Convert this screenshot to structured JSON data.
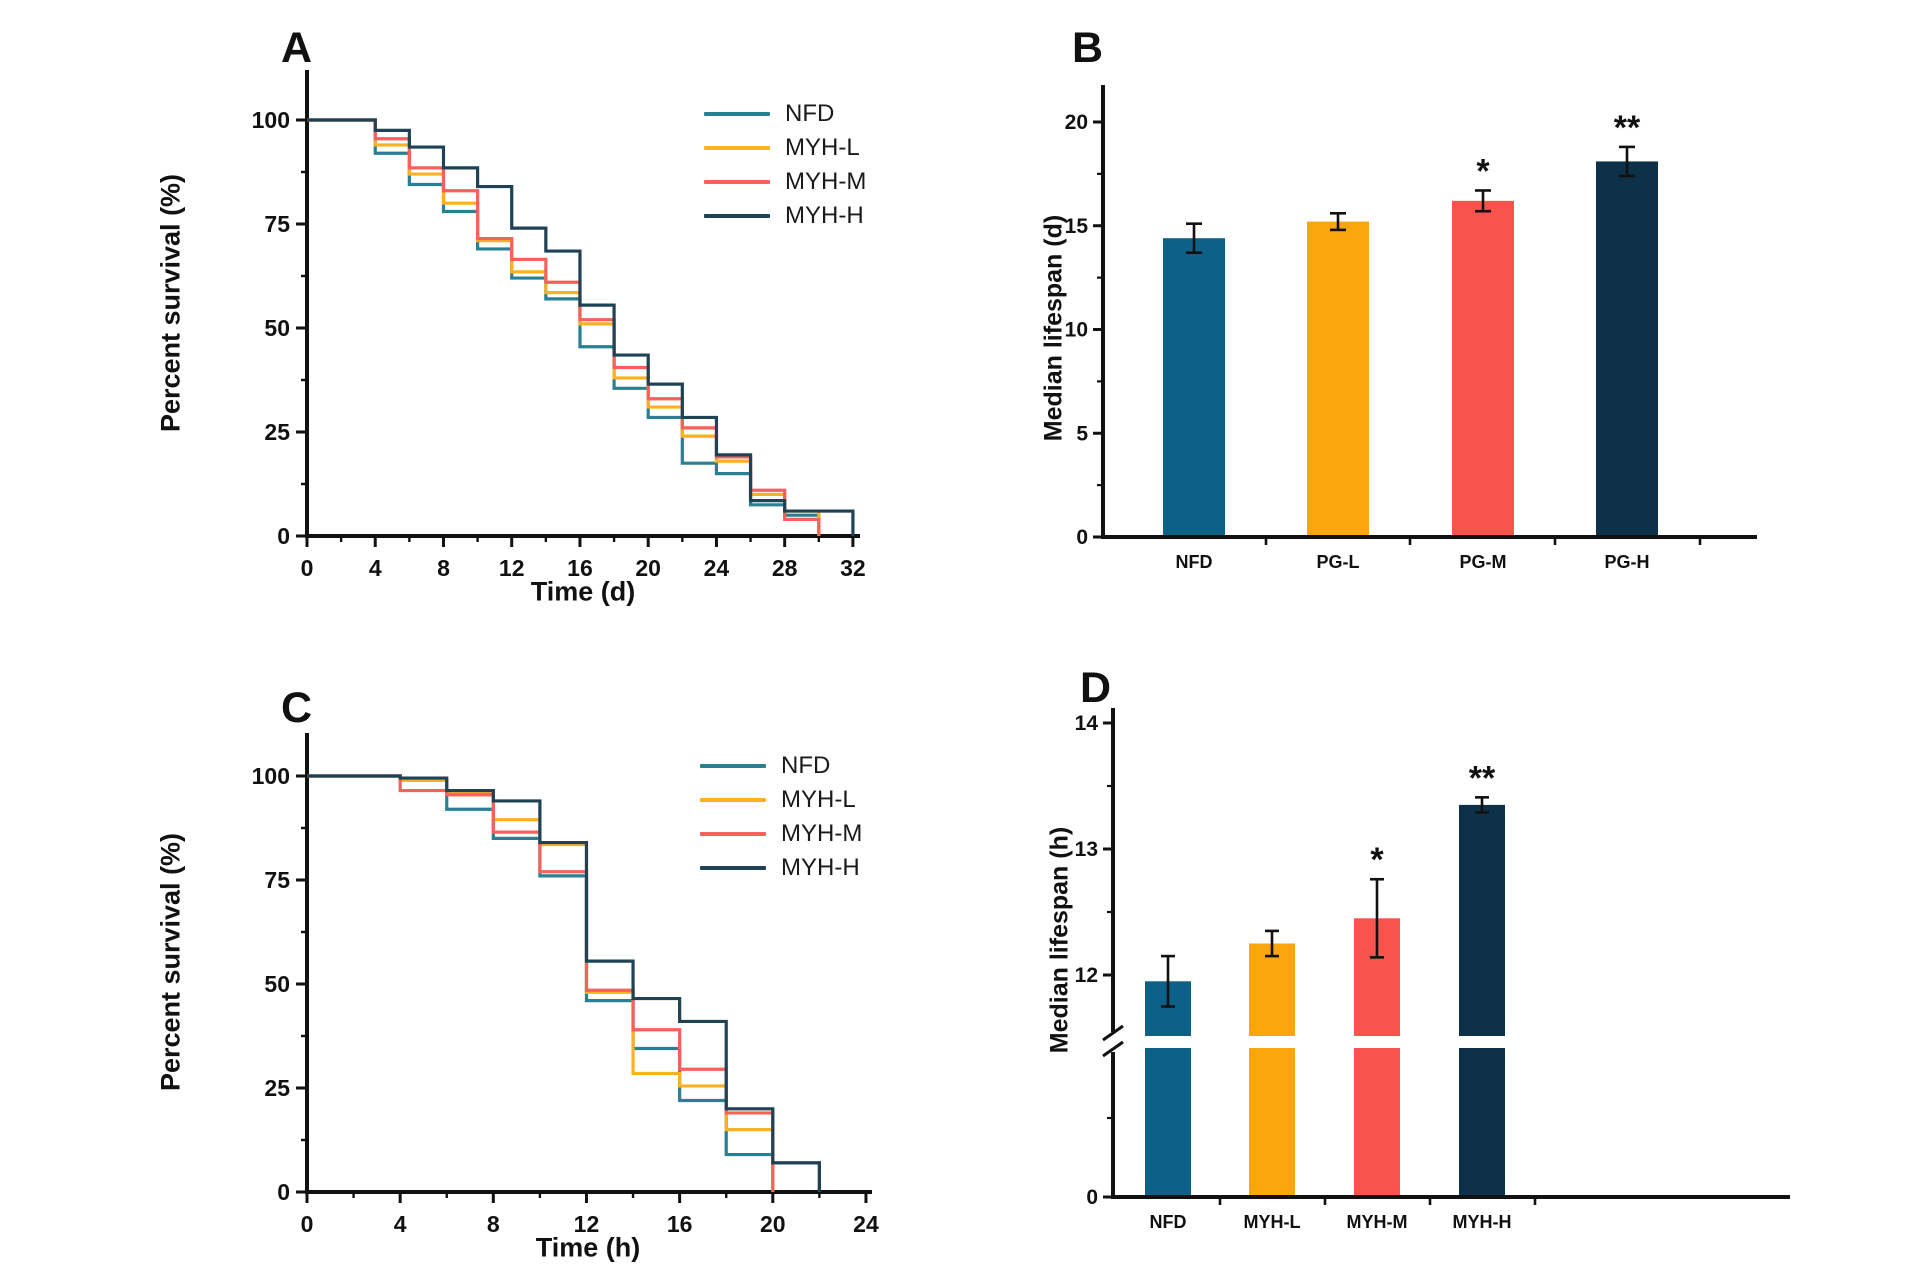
{
  "figure_bg": "#ffffff",
  "palette": {
    "NFD_line": "#2a8093",
    "NFD_bar": "#0c6189",
    "MYH_L_line": "#fdb022",
    "MYH_L_bar": "#fca50d",
    "MYH_M_line": "#f8605a",
    "MYH_M_bar": "#f9534d",
    "MYH_H_line": "#1f4254",
    "MYH_H_bar": "#0d3148",
    "axis": "#111111"
  },
  "chart_data": [
    {
      "panel": "A",
      "type": "line",
      "subtype": "kaplan-meier-step",
      "xlabel": "Time (d)",
      "ylabel": "Percent survival (%)",
      "xlim": [
        0,
        32
      ],
      "ylim": [
        0,
        100
      ],
      "x_ticks": [
        0,
        4,
        8,
        12,
        16,
        20,
        24,
        28,
        32
      ],
      "y_ticks": [
        0,
        25,
        50,
        75,
        100
      ],
      "grid": false,
      "legend_position": "upper right",
      "series": [
        {
          "name": "NFD",
          "color": "#2a8093",
          "points": [
            [
              0,
              100
            ],
            [
              4,
              92
            ],
            [
              6,
              84.5
            ],
            [
              8,
              78
            ],
            [
              10,
              69
            ],
            [
              12,
              62
            ],
            [
              14,
              57
            ],
            [
              16,
              45.5
            ],
            [
              18,
              35.5
            ],
            [
              20,
              28.5
            ],
            [
              22,
              17.5
            ],
            [
              24,
              15
            ],
            [
              26,
              7.5
            ],
            [
              28,
              5
            ],
            [
              30,
              0
            ]
          ]
        },
        {
          "name": "MYH-L",
          "color": "#fdb022",
          "points": [
            [
              0,
              100
            ],
            [
              4,
              94
            ],
            [
              6,
              87
            ],
            [
              8,
              80
            ],
            [
              10,
              71
            ],
            [
              12,
              63.5
            ],
            [
              14,
              58.5
            ],
            [
              16,
              51
            ],
            [
              18,
              38
            ],
            [
              20,
              31
            ],
            [
              22,
              24
            ],
            [
              24,
              18
            ],
            [
              26,
              10
            ],
            [
              28,
              6
            ],
            [
              30,
              0
            ]
          ]
        },
        {
          "name": "MYH-M",
          "color": "#f8605a",
          "points": [
            [
              0,
              100
            ],
            [
              4,
              95.5
            ],
            [
              6,
              88.5
            ],
            [
              8,
              83
            ],
            [
              10,
              71.5
            ],
            [
              12,
              66.5
            ],
            [
              14,
              61
            ],
            [
              16,
              52
            ],
            [
              18,
              40.5
            ],
            [
              20,
              33
            ],
            [
              22,
              26
            ],
            [
              24,
              19
            ],
            [
              26,
              11
            ],
            [
              28,
              4
            ],
            [
              30,
              0
            ]
          ]
        },
        {
          "name": "MYH-H",
          "color": "#1f4254",
          "points": [
            [
              0,
              100
            ],
            [
              4,
              97.5
            ],
            [
              6,
              93.5
            ],
            [
              8,
              88.5
            ],
            [
              10,
              84
            ],
            [
              12,
              74
            ],
            [
              14,
              68.5
            ],
            [
              16,
              55.5
            ],
            [
              18,
              43.5
            ],
            [
              20,
              36.5
            ],
            [
              22,
              28.5
            ],
            [
              24,
              19.5
            ],
            [
              26,
              8.5
            ],
            [
              28,
              6
            ],
            [
              32,
              0
            ]
          ]
        }
      ]
    },
    {
      "panel": "B",
      "type": "bar",
      "ylabel": "Median lifespan (d)",
      "ylim": [
        0,
        22
      ],
      "y_ticks": [
        0,
        5,
        10,
        15,
        20
      ],
      "y_minor_ticks": [
        2.5,
        7.5,
        12.5,
        17.5
      ],
      "grid": false,
      "categories": [
        "NFD",
        "PG-L",
        "PG-M",
        "PG-H"
      ],
      "values": [
        14.4,
        15.2,
        16.2,
        18.1
      ],
      "errors": [
        0.7,
        0.4,
        0.5,
        0.7
      ],
      "significance": [
        "",
        "",
        "*",
        "**"
      ],
      "bar_colors": [
        "#0c6189",
        "#fca50d",
        "#f9534d",
        "#0d3148"
      ]
    },
    {
      "panel": "C",
      "type": "line",
      "subtype": "kaplan-meier-step",
      "xlabel": "Time (h)",
      "ylabel": "Percent survival (%)",
      "xlim": [
        0,
        24
      ],
      "ylim": [
        0,
        100
      ],
      "x_ticks": [
        0,
        4,
        8,
        12,
        16,
        20,
        24
      ],
      "y_ticks": [
        0,
        25,
        50,
        75,
        100
      ],
      "grid": false,
      "legend_position": "upper right",
      "series": [
        {
          "name": "NFD",
          "color": "#2a8093",
          "points": [
            [
              0,
              100
            ],
            [
              4,
              99
            ],
            [
              6,
              92
            ],
            [
              8,
              85
            ],
            [
              10,
              76
            ],
            [
              12,
              46
            ],
            [
              14,
              34.5
            ],
            [
              16,
              22
            ],
            [
              18,
              9
            ],
            [
              20,
              7
            ],
            [
              22,
              0
            ]
          ]
        },
        {
          "name": "MYH-L",
          "color": "#fdb022",
          "points": [
            [
              0,
              100
            ],
            [
              4,
              99
            ],
            [
              6,
              96
            ],
            [
              8,
              89.5
            ],
            [
              10,
              83.5
            ],
            [
              12,
              48
            ],
            [
              14,
              28.5
            ],
            [
              16,
              25.5
            ],
            [
              18,
              15
            ],
            [
              20,
              0
            ]
          ]
        },
        {
          "name": "MYH-M",
          "color": "#f8605a",
          "points": [
            [
              0,
              100
            ],
            [
              4,
              96.5
            ],
            [
              6,
              95.5
            ],
            [
              8,
              86.5
            ],
            [
              10,
              77
            ],
            [
              12,
              48.5
            ],
            [
              14,
              39
            ],
            [
              16,
              29.5
            ],
            [
              18,
              19
            ],
            [
              20,
              0
            ]
          ]
        },
        {
          "name": "MYH-H",
          "color": "#1f4254",
          "points": [
            [
              0,
              100
            ],
            [
              4,
              99.5
            ],
            [
              6,
              96.5
            ],
            [
              8,
              94
            ],
            [
              10,
              84
            ],
            [
              12,
              55.5
            ],
            [
              14,
              46.5
            ],
            [
              16,
              41
            ],
            [
              18,
              20
            ],
            [
              20,
              7
            ],
            [
              22,
              0
            ]
          ]
        }
      ]
    },
    {
      "panel": "D",
      "type": "bar",
      "subtype": "broken-y-axis",
      "ylabel": "Median lifespan (h)",
      "ylim_upper": [
        11.4,
        14
      ],
      "y_ticks_upper": [
        12,
        13,
        14
      ],
      "y_minor_ticks_upper": [
        12.5,
        13.5
      ],
      "y_tick_bottom": 0,
      "axis_break": true,
      "grid": false,
      "categories": [
        "NFD",
        "MYH-L",
        "MYH-M",
        "MYH-H"
      ],
      "values": [
        11.95,
        12.25,
        12.45,
        13.35
      ],
      "errors": [
        0.2,
        0.1,
        0.31,
        0.06
      ],
      "significance": [
        "",
        "",
        "*",
        "**"
      ],
      "bar_colors": [
        "#0c6189",
        "#fca50d",
        "#f9534d",
        "#0d3148"
      ]
    }
  ]
}
